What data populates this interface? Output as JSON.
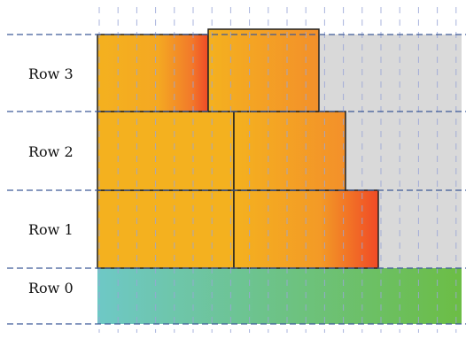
{
  "rows": [
    {
      "id": "row-3",
      "label": "Row 3"
    },
    {
      "id": "row-2",
      "label": "Row 2"
    },
    {
      "id": "row-1",
      "label": "Row 1"
    },
    {
      "id": "row-0",
      "label": "Row 0"
    }
  ],
  "colors": {
    "block_fill": "#f4b11f",
    "block_accent_orange": "#f3902a",
    "block_accent_red": "#f04a26",
    "base_gradient_start": "#6ec8c6",
    "base_gradient_end": "#6cbd45",
    "background_panel": "#d9d9d9",
    "row_divider": "#3d5a99",
    "vertical_grid": "#9aa6d8",
    "block_outline": "#222222"
  }
}
